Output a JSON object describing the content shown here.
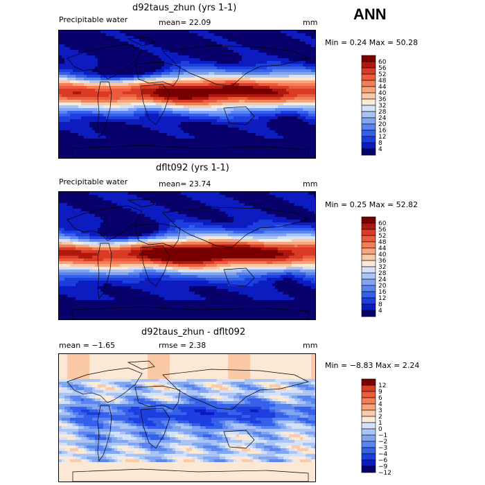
{
  "season": "ANN",
  "colors": {
    "abs": [
      "#08006b",
      "#0d1cc0",
      "#1e3fe0",
      "#3560ea",
      "#5a85f0",
      "#82a5f2",
      "#aac4f5",
      "#d3e2fa",
      "#fbe8d5",
      "#fbc9a6",
      "#f8a47c",
      "#f47e58",
      "#ec5b3b",
      "#d93b25",
      "#b0180f",
      "#7a0000"
    ],
    "diff": [
      "#08006b",
      "#0d1cc0",
      "#1e3fe0",
      "#3560ea",
      "#5a85f0",
      "#82a5f2",
      "#aac4f5",
      "#d3e2fa",
      "#fbe8d5",
      "#fbc9a6",
      "#f8a47c",
      "#f47e58",
      "#ec5b3b",
      "#d93b25",
      "#7a0000"
    ]
  },
  "panels": [
    {
      "title": "d92taus_zhun (yrs 1-1)",
      "left_label": "Precipitable water",
      "mean_label": "mean=  22.09",
      "units": "mm",
      "minmax": "Min =    0.24  Max =   50.28",
      "levels": [
        "60",
        "56",
        "52",
        "48",
        "44",
        "40",
        "36",
        "32",
        "28",
        "24",
        "20",
        "16",
        "12",
        "8",
        "4"
      ]
    },
    {
      "title": "dflt092 (yrs 1-1)",
      "left_label": "Precipitable water",
      "mean_label": "mean=  23.74",
      "units": "mm",
      "minmax": "Min =    0.25  Max =   52.82",
      "levels": [
        "60",
        "56",
        "52",
        "48",
        "44",
        "40",
        "36",
        "32",
        "28",
        "24",
        "20",
        "16",
        "12",
        "8",
        "4"
      ]
    },
    {
      "title": "d92taus_zhun - dflt092",
      "left_label": "mean =  −1.65",
      "mean_label": "rmse =   2.38",
      "units": "mm",
      "minmax": "Min =  −8.83  Max =    2.24",
      "levels": [
        "12",
        "9",
        "6",
        "4",
        "3",
        "2",
        "1",
        "0",
        "−1",
        "−2",
        "−3",
        "−4",
        "−6",
        "−9",
        "−12"
      ]
    }
  ],
  "chart_data": [
    {
      "type": "heatmap",
      "title": "d92taus_zhun (yrs 1-1)",
      "variable": "Precipitable water",
      "units": "mm",
      "mean": 22.09,
      "min": 0.24,
      "max": 50.28,
      "colorbar_levels": [
        4,
        8,
        12,
        16,
        20,
        24,
        28,
        32,
        36,
        40,
        44,
        48,
        52,
        56,
        60
      ]
    },
    {
      "type": "heatmap",
      "title": "dflt092 (yrs 1-1)",
      "variable": "Precipitable water",
      "units": "mm",
      "mean": 23.74,
      "min": 0.25,
      "max": 52.82,
      "colorbar_levels": [
        4,
        8,
        12,
        16,
        20,
        24,
        28,
        32,
        36,
        40,
        44,
        48,
        52,
        56,
        60
      ]
    },
    {
      "type": "heatmap",
      "title": "d92taus_zhun - dflt092",
      "units": "mm",
      "mean": -1.65,
      "rmse": 2.38,
      "min": -8.83,
      "max": 2.24,
      "colorbar_levels": [
        -12,
        -9,
        -6,
        -4,
        -3,
        -2,
        -1,
        0,
        1,
        2,
        3,
        4,
        6,
        9,
        12
      ]
    }
  ]
}
